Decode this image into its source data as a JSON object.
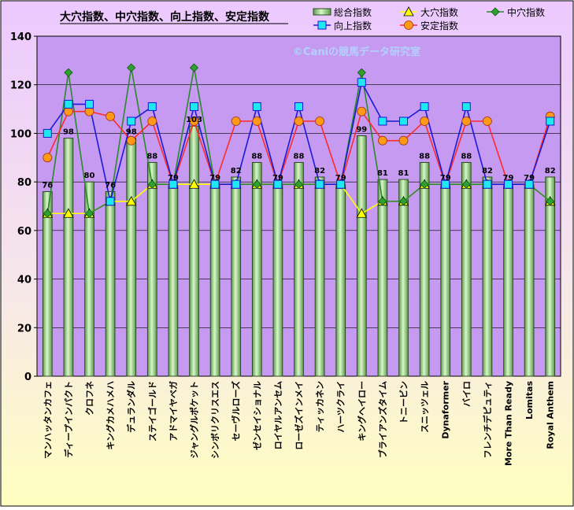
{
  "chart_data": {
    "type": "bar",
    "title": "大穴指数、中穴指数、向上指数、安定指数",
    "watermark": "©Caniの競馬データ研究室",
    "ylim": [
      0,
      140
    ],
    "yticks": [
      0,
      20,
      40,
      60,
      80,
      100,
      120,
      140
    ],
    "grid": true,
    "legend_position": "top-right",
    "colors": {
      "background_top": "#eac3ff",
      "background_bottom": "#ffffc8",
      "plot_background": "#c59af0",
      "bar_fill": "#c8f0b4",
      "bar_fill_dark": "#5a9a4a",
      "daiana": "#ffff00",
      "chuana": "#2a8a2a",
      "koujou": "#1a1ad8",
      "antei": "#ff2a2a"
    },
    "categories": [
      "マンハッタンカフェ",
      "ディープインパクト",
      "クロフネ",
      "キングカメハメハ",
      "デュランダル",
      "ステイゴールド",
      "アドマイヤベガ",
      "ジャングルポケット",
      "シンボリクリスエス",
      "セーヴルローズ",
      "ゼンセイショナル",
      "ロイヤルアンセム",
      "ローゼズインメイ",
      "ティッカネン",
      "ハーツクライ",
      "キングヘイロー",
      "ブライアンズタイム",
      "トニービン",
      "スニッツェル",
      "Dynaformer",
      "バイロ",
      "フレンチデピュティ",
      "More Than Ready",
      "Lomitas",
      "Royal Anthem"
    ],
    "series": [
      {
        "name": "総合指数",
        "kind": "bar",
        "values": [
          76,
          98,
          80,
          76,
          98,
          88,
          79,
          103,
          79,
          82,
          88,
          79,
          88,
          82,
          79,
          99,
          81,
          81,
          88,
          79,
          88,
          82,
          79,
          79,
          82
        ]
      },
      {
        "name": "大穴指数",
        "kind": "line",
        "marker": "triangle",
        "values": [
          67,
          67,
          67,
          72,
          72,
          79,
          79,
          79,
          79,
          79,
          79,
          79,
          79,
          79,
          79,
          67,
          72,
          72,
          79,
          79,
          79,
          79,
          79,
          79,
          72
        ]
      },
      {
        "name": "中穴指数",
        "kind": "line",
        "marker": "diamond",
        "values": [
          67,
          125,
          67,
          72,
          127,
          79,
          79,
          127,
          79,
          79,
          79,
          79,
          79,
          79,
          79,
          125,
          72,
          72,
          79,
          79,
          79,
          79,
          79,
          79,
          72
        ]
      },
      {
        "name": "向上指数",
        "kind": "line",
        "marker": "square",
        "values": [
          100,
          112,
          112,
          72,
          105,
          111,
          79,
          111,
          79,
          79,
          111,
          79,
          111,
          79,
          79,
          121,
          105,
          105,
          111,
          79,
          111,
          79,
          79,
          79,
          105
        ]
      },
      {
        "name": "安定指数",
        "kind": "line",
        "marker": "circle",
        "values": [
          90,
          109,
          109,
          107,
          97,
          105,
          79,
          105,
          79,
          105,
          105,
          79,
          105,
          105,
          79,
          109,
          97,
          97,
          105,
          79,
          105,
          105,
          79,
          79,
          107
        ]
      }
    ]
  }
}
